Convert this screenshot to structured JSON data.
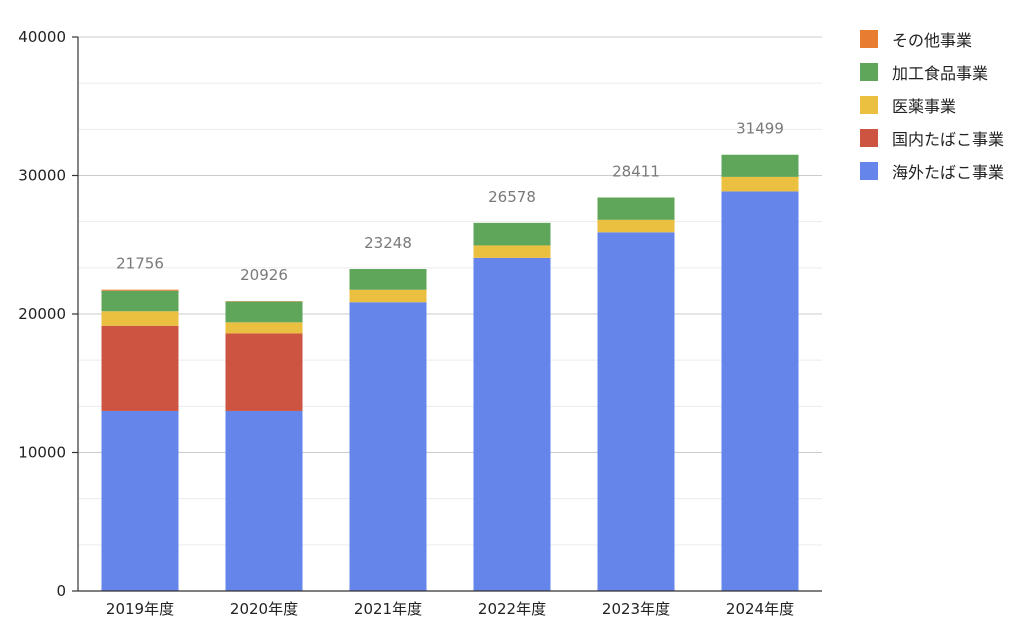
{
  "chart_data": {
    "type": "bar",
    "stacked": true,
    "categories": [
      "2019年度",
      "2020年度",
      "2021年度",
      "2022年度",
      "2023年度",
      "2024年度"
    ],
    "series": [
      {
        "name": "海外たばこ事業",
        "color": "#6585ea",
        "values": [
          13000,
          13000,
          20850,
          24050,
          25900,
          28850
        ]
      },
      {
        "name": "国内たばこ事業",
        "color": "#cd5440",
        "values": [
          6150,
          5600,
          0,
          0,
          0,
          0
        ]
      },
      {
        "name": "医薬事業",
        "color": "#ebbf40",
        "values": [
          1050,
          800,
          900,
          900,
          900,
          1050
        ]
      },
      {
        "name": "加工食品事業",
        "color": "#5fa55a",
        "values": [
          1480,
          1500,
          1498,
          1628,
          1611,
          1599
        ]
      },
      {
        "name": "その他事業",
        "color": "#e87c30",
        "values": [
          76,
          26,
          0,
          0,
          0,
          0
        ]
      }
    ],
    "totals": [
      21756,
      20926,
      23248,
      26578,
      28411,
      31499
    ],
    "yticks": [
      0,
      10000,
      20000,
      30000,
      40000
    ],
    "ylim": [
      0,
      40000
    ],
    "legend_position": "right",
    "grid": true
  }
}
